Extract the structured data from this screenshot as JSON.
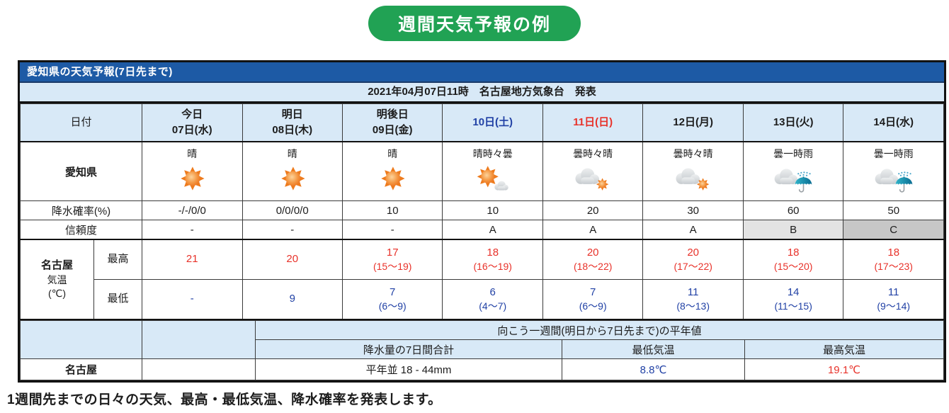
{
  "badge": {
    "label": "週間天気予報の例"
  },
  "table": {
    "title": "愛知県の天気予報(7日先まで)",
    "issued": "2021年04月07日11時　名古屋地方気象台　発表",
    "header": {
      "date_label": "日付",
      "days": [
        {
          "line1": "今日",
          "line2": "07日(水)",
          "color": "black"
        },
        {
          "line1": "明日",
          "line2": "08日(木)",
          "color": "black"
        },
        {
          "line1": "明後日",
          "line2": "09日(金)",
          "color": "black"
        },
        {
          "line1": "",
          "line2": "10日(土)",
          "color": "blue"
        },
        {
          "line1": "",
          "line2": "11日(日)",
          "color": "red"
        },
        {
          "line1": "",
          "line2": "12日(月)",
          "color": "black"
        },
        {
          "line1": "",
          "line2": "13日(火)",
          "color": "black"
        },
        {
          "line1": "",
          "line2": "14日(水)",
          "color": "black"
        }
      ]
    },
    "weather": {
      "label": "愛知県",
      "cells": [
        {
          "text": "晴",
          "icon": "sun-icon"
        },
        {
          "text": "晴",
          "icon": "sun-icon"
        },
        {
          "text": "晴",
          "icon": "sun-icon"
        },
        {
          "text": "晴時々曇",
          "icon": "sun-cloud-icon"
        },
        {
          "text": "曇時々晴",
          "icon": "cloud-sun-icon"
        },
        {
          "text": "曇時々晴",
          "icon": "cloud-sun-icon"
        },
        {
          "text": "曇一時雨",
          "icon": "cloud-umbrella-icon"
        },
        {
          "text": "曇一時雨",
          "icon": "cloud-umbrella-icon"
        }
      ]
    },
    "precip": {
      "label": "降水確率(%)",
      "values": [
        "-/-/0/0",
        "0/0/0/0",
        "10",
        "10",
        "20",
        "30",
        "60",
        "50"
      ]
    },
    "reliability": {
      "label": "信頼度",
      "values": [
        "-",
        "-",
        "-",
        "A",
        "A",
        "A",
        "B",
        "C"
      ]
    },
    "temperature": {
      "label_city": "名古屋",
      "label_kind": "気温",
      "label_unit": "(℃)",
      "max": {
        "label": "最高",
        "values": [
          {
            "main": "21",
            "range": ""
          },
          {
            "main": "20",
            "range": ""
          },
          {
            "main": "17",
            "range": "(15〜19)"
          },
          {
            "main": "18",
            "range": "(16〜19)"
          },
          {
            "main": "20",
            "range": "(18〜22)"
          },
          {
            "main": "20",
            "range": "(17〜22)"
          },
          {
            "main": "18",
            "range": "(15〜20)"
          },
          {
            "main": "18",
            "range": "(17〜23)"
          }
        ]
      },
      "min": {
        "label": "最低",
        "values": [
          {
            "main": "-",
            "range": ""
          },
          {
            "main": "9",
            "range": ""
          },
          {
            "main": "7",
            "range": "(6〜9)"
          },
          {
            "main": "6",
            "range": "(4〜7)"
          },
          {
            "main": "7",
            "range": "(6〜9)"
          },
          {
            "main": "11",
            "range": "(8〜13)"
          },
          {
            "main": "14",
            "range": "(11〜15)"
          },
          {
            "main": "11",
            "range": "(9〜14)"
          }
        ]
      }
    },
    "normals": {
      "title": "向こう一週間(明日から7日先まで)の平年値",
      "col_precip": "降水量の7日間合計",
      "col_min": "最低気温",
      "col_max": "最高気温",
      "row_label": "名古屋",
      "precip_value": "平年並 18 - 44mm",
      "min_value": "8.8℃",
      "max_value": "19.1℃"
    }
  },
  "caption": "1週間先までの日々の天気、最高・最低気温、降水確率を発表します。",
  "colors": {
    "header_blue": "#1d5aa5",
    "light_blue": "#d8e9f7",
    "badge_green": "#21a254",
    "max_temp_red": "#e8322a",
    "min_temp_blue": "#2141a5",
    "reliability_b_bg": "#e3e3e3",
    "reliability_c_bg": "#c7c7c7",
    "sun_orange": "#ee7b1d",
    "cloud_gray": "#d3d6d9",
    "umbrella_teal": "#1190b2"
  }
}
